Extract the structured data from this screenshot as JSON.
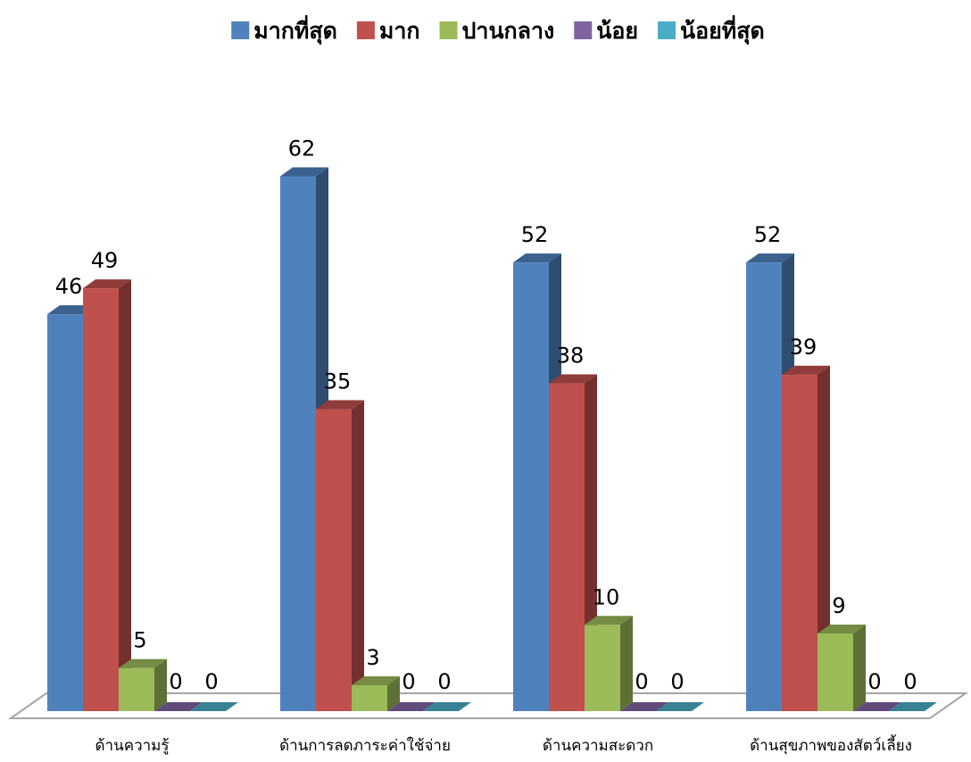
{
  "chart_data": {
    "type": "bar3d",
    "categories": [
      "ด้านความรู้",
      "ด้านการลดภาระค่าใช้จ่าย",
      "ด้านความสะดวก",
      "ด้านสุขภาพของสัตว์เลี้ยง"
    ],
    "series": [
      {
        "name": "มากที่สุด",
        "color": "#4f81bd",
        "values": [
          46,
          62,
          52,
          52
        ]
      },
      {
        "name": "มาก",
        "color": "#c0504d",
        "values": [
          49,
          35,
          38,
          39
        ]
      },
      {
        "name": "ปานกลาง",
        "color": "#9bbb59",
        "values": [
          5,
          3,
          10,
          9
        ]
      },
      {
        "name": "น้อย",
        "color": "#8064a2",
        "values": [
          0,
          0,
          0,
          0
        ]
      },
      {
        "name": "น้อยที่สุด",
        "color": "#4bacc6",
        "values": [
          0,
          0,
          0,
          0
        ]
      }
    ],
    "legend": "top"
  }
}
